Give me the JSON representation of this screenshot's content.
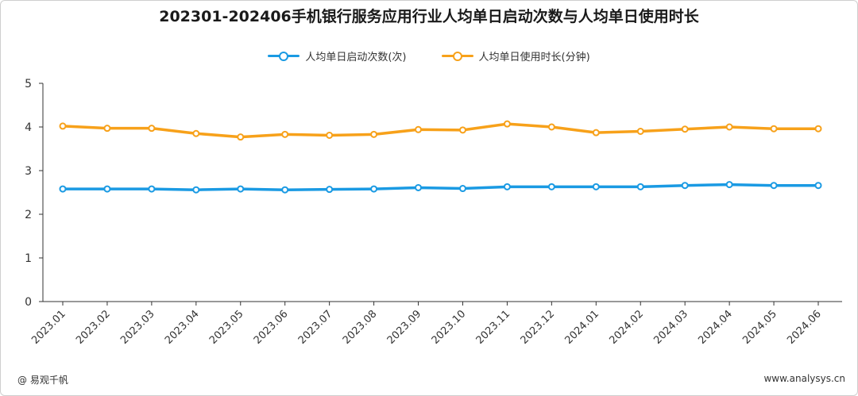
{
  "title": "202301-202406手机银行服务应用行业人均单日启动次数与人均单日使用时长",
  "footer": {
    "source": "@ 易观千帆",
    "site": "www.analysys.cn"
  },
  "chart_data": {
    "type": "line",
    "title": "202301-202406手机银行服务应用行业人均单日启动次数与人均单日使用时长",
    "categories": [
      "2023.01",
      "2023.02",
      "2023.03",
      "2023.04",
      "2023.05",
      "2023.06",
      "2023.07",
      "2023.08",
      "2023.09",
      "2023.10",
      "2023.11",
      "2023.12",
      "2024.01",
      "2024.02",
      "2024.03",
      "2024.04",
      "2024.05",
      "2024.06"
    ],
    "ylim": [
      0,
      5
    ],
    "yticks": [
      "0",
      "1",
      "2",
      "3",
      "4",
      "5"
    ],
    "grid": false,
    "legend_position": "top-center",
    "series": [
      {
        "name": "人均单日启动次数(次)",
        "color": "#1a9ae3",
        "values": [
          2.58,
          2.58,
          2.58,
          2.56,
          2.58,
          2.56,
          2.57,
          2.58,
          2.61,
          2.59,
          2.63,
          2.63,
          2.63,
          2.63,
          2.66,
          2.68,
          2.66,
          2.66
        ]
      },
      {
        "name": "人均单日使用时长(分钟)",
        "color": "#f7a11a",
        "values": [
          4.02,
          3.97,
          3.97,
          3.85,
          3.77,
          3.83,
          3.81,
          3.83,
          3.94,
          3.93,
          4.07,
          4.0,
          3.87,
          3.9,
          3.95,
          4.0,
          3.96,
          3.96
        ]
      }
    ]
  }
}
